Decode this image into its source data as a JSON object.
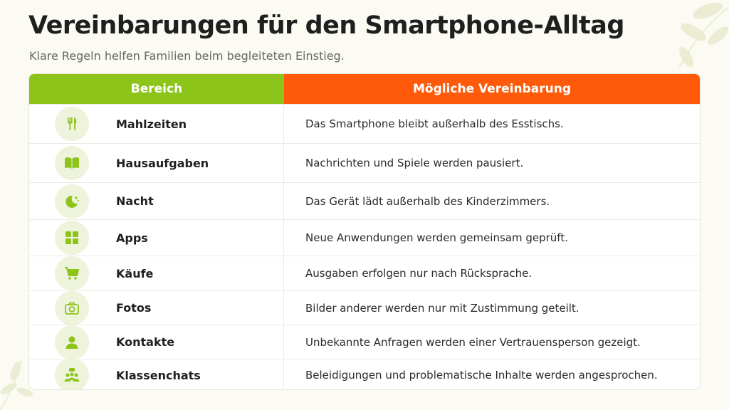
{
  "header": {
    "title": "Vereinbarungen für den Smartphone-Alltag",
    "subtitle": "Klare Regeln helfen Familien beim begleiteten Einstieg."
  },
  "table": {
    "columns": [
      "Bereich",
      "Mögliche Vereinbarung"
    ],
    "rows": [
      [
        "Mahlzeiten",
        "Das Smartphone bleibt außerhalb des Esstischs."
      ],
      [
        "Hausaufgaben",
        "Nachrichten und Spiele werden pausiert."
      ],
      [
        "Nacht",
        "Das Gerät lädt außerhalb des Kinderzimmers."
      ],
      [
        "Apps",
        "Neue Anwendungen werden gemeinsam geprüft."
      ],
      [
        "Käufe",
        "Ausgaben erfolgen nur nach Rücksprache."
      ],
      [
        "Fotos",
        "Bilder anderer werden nur mit Zustimmung geteilt."
      ],
      [
        "Kontakte",
        "Unbekannte Anfragen werden einer Vertrauensperson gezeigt."
      ],
      [
        "Klassenchats",
        "Beleidigungen und problematische Inhalte werden angesprochen."
      ]
    ]
  }
}
